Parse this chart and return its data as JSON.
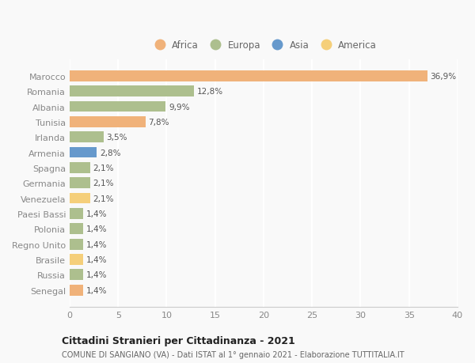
{
  "categories": [
    "Marocco",
    "Romania",
    "Albania",
    "Tunisia",
    "Irlanda",
    "Armenia",
    "Spagna",
    "Germania",
    "Venezuela",
    "Paesi Bassi",
    "Polonia",
    "Regno Unito",
    "Brasile",
    "Russia",
    "Senegal"
  ],
  "values": [
    36.9,
    12.8,
    9.9,
    7.8,
    3.5,
    2.8,
    2.1,
    2.1,
    2.1,
    1.4,
    1.4,
    1.4,
    1.4,
    1.4,
    1.4
  ],
  "labels": [
    "36,9%",
    "12,8%",
    "9,9%",
    "7,8%",
    "3,5%",
    "2,8%",
    "2,1%",
    "2,1%",
    "2,1%",
    "1,4%",
    "1,4%",
    "1,4%",
    "1,4%",
    "1,4%",
    "1,4%"
  ],
  "continents": [
    "Africa",
    "Europa",
    "Europa",
    "Africa",
    "Europa",
    "Asia",
    "Europa",
    "Europa",
    "America",
    "Europa",
    "Europa",
    "Europa",
    "America",
    "Europa",
    "Africa"
  ],
  "continent_colors": {
    "Africa": "#F0B27A",
    "Europa": "#ADBF8E",
    "Asia": "#6699CC",
    "America": "#F5CF7A"
  },
  "legend_order": [
    "Africa",
    "Europa",
    "Asia",
    "America"
  ],
  "xlim": [
    0,
    40
  ],
  "xticks": [
    0,
    5,
    10,
    15,
    20,
    25,
    30,
    35,
    40
  ],
  "title": "Cittadini Stranieri per Cittadinanza - 2021",
  "subtitle": "COMUNE DI SANGIANO (VA) - Dati ISTAT al 1° gennaio 2021 - Elaborazione TUTTITALIA.IT",
  "bg_color": "#f9f9f9",
  "grid_color": "#ffffff",
  "bar_height": 0.72
}
